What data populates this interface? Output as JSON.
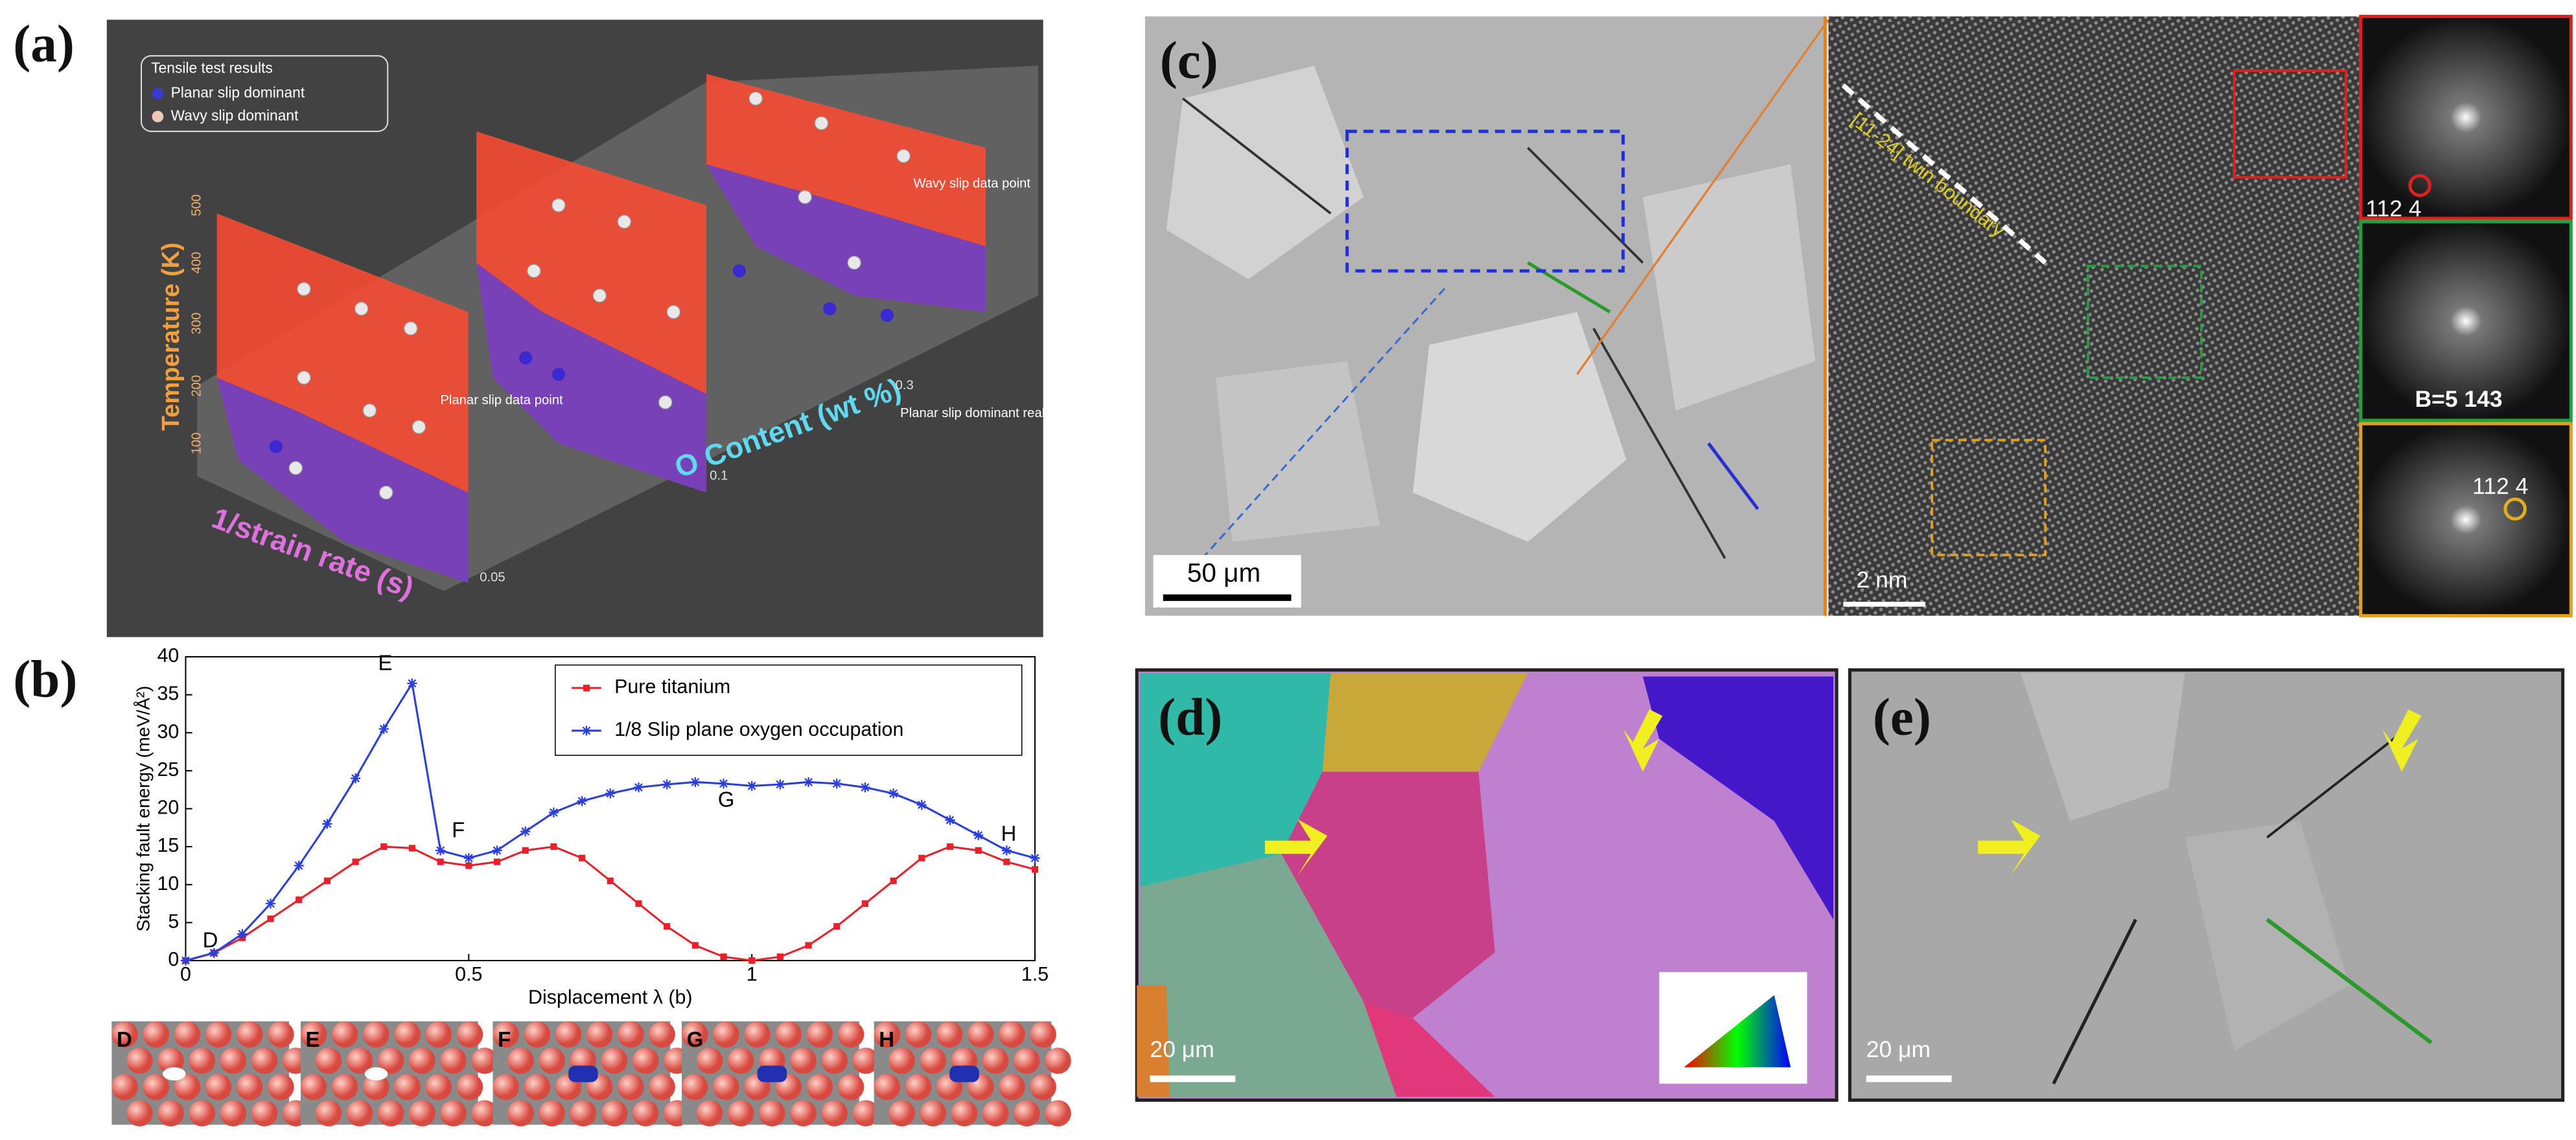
{
  "panels": {
    "a": {
      "label": "(a)",
      "legend_title": "Tensile test results",
      "legend": [
        "Planar slip dominant",
        "Wavy slip dominant"
      ],
      "temperature_label": "Temperature (K)",
      "temperature_ticks": [
        100,
        200,
        300,
        400,
        500
      ],
      "oxygen_label": "O Content (wt %)",
      "oxygen_ticks": [
        0.05,
        0.1,
        0.3
      ],
      "strain_label": "1/strain rate (s)",
      "annotations": [
        "Wavy slip data point",
        "Planar slip data point",
        "Planar slip dominant realm"
      ]
    },
    "b": {
      "label": "(b)",
      "insets": [
        "D",
        "E",
        "F",
        "G",
        "H"
      ]
    },
    "c": {
      "label": "(c)",
      "scale_left": "50 μm",
      "scale_right": "2 nm",
      "boundary": "[11-24] twin boundary",
      "fft_top": "112 4",
      "fft_middle": "B=5 143",
      "fft_bottom": "112 4"
    },
    "d": {
      "label": "(d)",
      "scale": "20 μm"
    },
    "e": {
      "label": "(e)",
      "scale": "20 μm"
    }
  },
  "chart_data": {
    "type": "line",
    "x_label": "Displacement λ (b)",
    "y_label": "Stacking fault energy (meV/Å²)",
    "x": [
      0,
      0.05,
      0.1,
      0.15,
      0.2,
      0.25,
      0.3,
      0.35,
      0.4,
      0.45,
      0.5,
      0.55,
      0.6,
      0.65,
      0.7,
      0.75,
      0.8,
      0.85,
      0.9,
      0.95,
      1,
      1.05,
      1.1,
      1.15,
      1.2,
      1.25,
      1.3,
      1.35,
      1.4,
      1.45,
      1.5
    ],
    "series": [
      {
        "name": "Pure titanium",
        "color": "#e8202a",
        "values": [
          0,
          1,
          3,
          5.5,
          8,
          10.5,
          13,
          15,
          14.8,
          13,
          12.5,
          13,
          14.5,
          15,
          13.5,
          10.5,
          7.5,
          4.5,
          2,
          0.5,
          0,
          0.5,
          2,
          4.5,
          7.5,
          10.5,
          13.5,
          15,
          14.5,
          13,
          12
        ]
      },
      {
        "name": "1/8 Slip plane oxygen occupation",
        "color": "#2a3ee0",
        "values": [
          0,
          1,
          3.5,
          7.5,
          12.5,
          18,
          24,
          30.5,
          36.5,
          14.5,
          13.5,
          14.5,
          17,
          19.5,
          21,
          22,
          22.8,
          23.2,
          23.5,
          23.3,
          23,
          23.2,
          23.5,
          23.3,
          22.8,
          22,
          20.5,
          18.5,
          16.5,
          14.5,
          13.5
        ]
      }
    ],
    "annotations": [
      "D",
      "E",
      "F",
      "G",
      "H"
    ],
    "xlim": [
      0,
      1.5
    ],
    "xticks": [
      0,
      0.5,
      1,
      1.5
    ],
    "ylim": [
      0,
      40
    ],
    "yticks": [
      0,
      5,
      10,
      15,
      20,
      25,
      30,
      35,
      40
    ],
    "legend": "upper right",
    "grid": false
  }
}
